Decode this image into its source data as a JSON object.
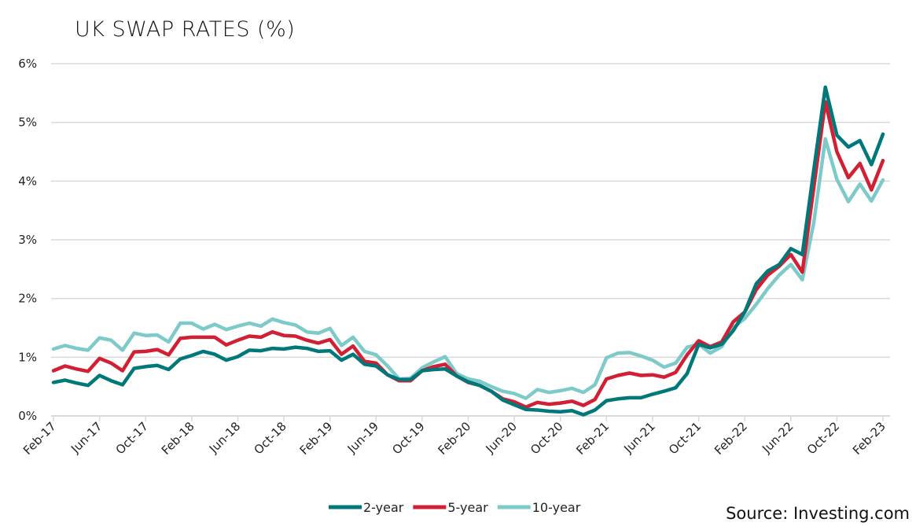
{
  "chart_data": {
    "type": "line",
    "title": "UK SWAP RATES (%)",
    "source": "Source: Investing.com",
    "ylim": [
      0,
      6
    ],
    "yticks": [
      "0%",
      "1%",
      "2%",
      "3%",
      "4%",
      "5%",
      "6%"
    ],
    "grid": true,
    "legend": "bottom",
    "xticks": [
      "Feb-17",
      "Jun-17",
      "Oct-17",
      "Feb-18",
      "Jun-18",
      "Oct-18",
      "Feb-19",
      "Jun-19",
      "Oct-19",
      "Feb-20",
      "Jun-20",
      "Oct-20",
      "Feb-21",
      "Jun-21",
      "Oct-21",
      "Feb-22",
      "Jun-22",
      "Oct-22",
      "Feb-23"
    ],
    "x_start": "Feb-17",
    "x_end": "Feb-23",
    "x_frequency": "monthly",
    "series": [
      {
        "name": "2-year",
        "color": "#00787a",
        "values": [
          0.57,
          0.61,
          0.56,
          0.52,
          0.69,
          0.6,
          0.53,
          0.81,
          0.84,
          0.86,
          0.79,
          0.97,
          1.03,
          1.1,
          1.05,
          0.95,
          1.01,
          1.12,
          1.11,
          1.15,
          1.14,
          1.17,
          1.15,
          1.1,
          1.11,
          0.95,
          1.05,
          0.88,
          0.85,
          0.7,
          0.62,
          0.62,
          0.77,
          0.79,
          0.8,
          0.68,
          0.58,
          0.52,
          0.42,
          0.27,
          0.19,
          0.11,
          0.1,
          0.08,
          0.07,
          0.09,
          0.02,
          0.1,
          0.26,
          0.29,
          0.31,
          0.31,
          0.37,
          0.42,
          0.48,
          0.72,
          1.22,
          1.16,
          1.22,
          1.45,
          1.77,
          2.25,
          2.47,
          2.58,
          2.85,
          2.75,
          4.2,
          5.6,
          4.78,
          4.58,
          4.69,
          4.28,
          4.8
        ]
      },
      {
        "name": "5-year",
        "color": "#d11f33",
        "values": [
          0.77,
          0.85,
          0.8,
          0.76,
          0.98,
          0.9,
          0.77,
          1.09,
          1.1,
          1.13,
          1.04,
          1.32,
          1.34,
          1.34,
          1.34,
          1.21,
          1.29,
          1.36,
          1.34,
          1.43,
          1.37,
          1.36,
          1.29,
          1.24,
          1.3,
          1.05,
          1.19,
          0.93,
          0.9,
          0.7,
          0.6,
          0.6,
          0.77,
          0.84,
          0.88,
          0.68,
          0.57,
          0.52,
          0.42,
          0.29,
          0.24,
          0.15,
          0.23,
          0.2,
          0.22,
          0.25,
          0.18,
          0.28,
          0.63,
          0.69,
          0.73,
          0.69,
          0.7,
          0.66,
          0.74,
          1.04,
          1.28,
          1.18,
          1.26,
          1.6,
          1.77,
          2.15,
          2.4,
          2.55,
          2.75,
          2.45,
          3.9,
          5.35,
          4.5,
          4.06,
          4.3,
          3.85,
          4.35
        ]
      },
      {
        "name": "10-year",
        "color": "#7ecac9",
        "values": [
          1.14,
          1.2,
          1.15,
          1.12,
          1.33,
          1.29,
          1.12,
          1.41,
          1.37,
          1.38,
          1.26,
          1.58,
          1.58,
          1.48,
          1.56,
          1.47,
          1.53,
          1.58,
          1.53,
          1.65,
          1.59,
          1.55,
          1.43,
          1.41,
          1.49,
          1.2,
          1.34,
          1.1,
          1.04,
          0.85,
          0.63,
          0.64,
          0.82,
          0.92,
          1.01,
          0.72,
          0.63,
          0.59,
          0.5,
          0.42,
          0.38,
          0.3,
          0.45,
          0.4,
          0.43,
          0.47,
          0.4,
          0.53,
          0.99,
          1.07,
          1.08,
          1.02,
          0.95,
          0.83,
          0.9,
          1.17,
          1.22,
          1.07,
          1.18,
          1.5,
          1.66,
          1.9,
          2.17,
          2.4,
          2.58,
          2.32,
          3.3,
          4.72,
          4.03,
          3.65,
          3.95,
          3.66,
          4.02
        ]
      }
    ]
  }
}
